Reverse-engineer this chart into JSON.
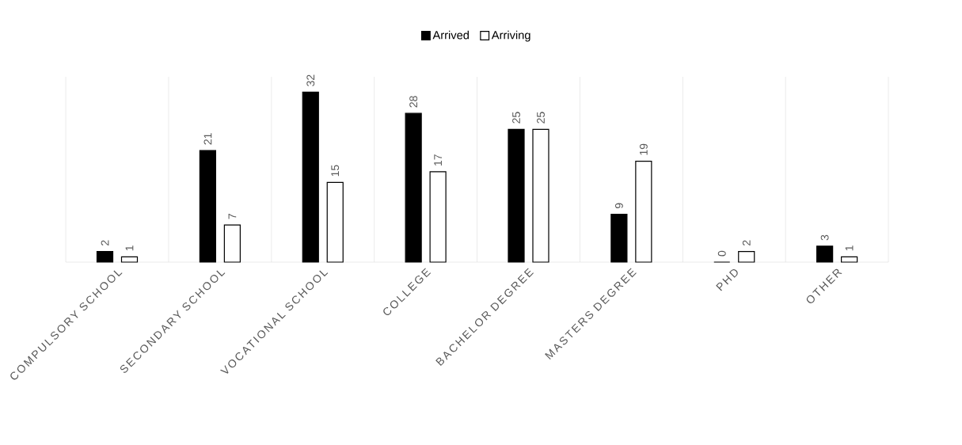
{
  "chart_data": {
    "type": "bar",
    "categories": [
      "COMPULSORY SCHOOL",
      "SECONDARY SCHOOL",
      "VOCATIONAL SCHOOL",
      "COLLEGE",
      "BACHELOR DEGREE",
      "MASTERS DEGREE",
      "PHD",
      "OTHER"
    ],
    "series": [
      {
        "name": "Arrived",
        "color": "#000000",
        "values": [
          2,
          21,
          32,
          28,
          25,
          9,
          0,
          3
        ]
      },
      {
        "name": "Arriving",
        "color": "#ffffff",
        "values": [
          1,
          7,
          15,
          17,
          25,
          19,
          2,
          1
        ]
      }
    ],
    "data_labels": true,
    "grid": "x",
    "legend": "top",
    "tick_labels": "x"
  }
}
